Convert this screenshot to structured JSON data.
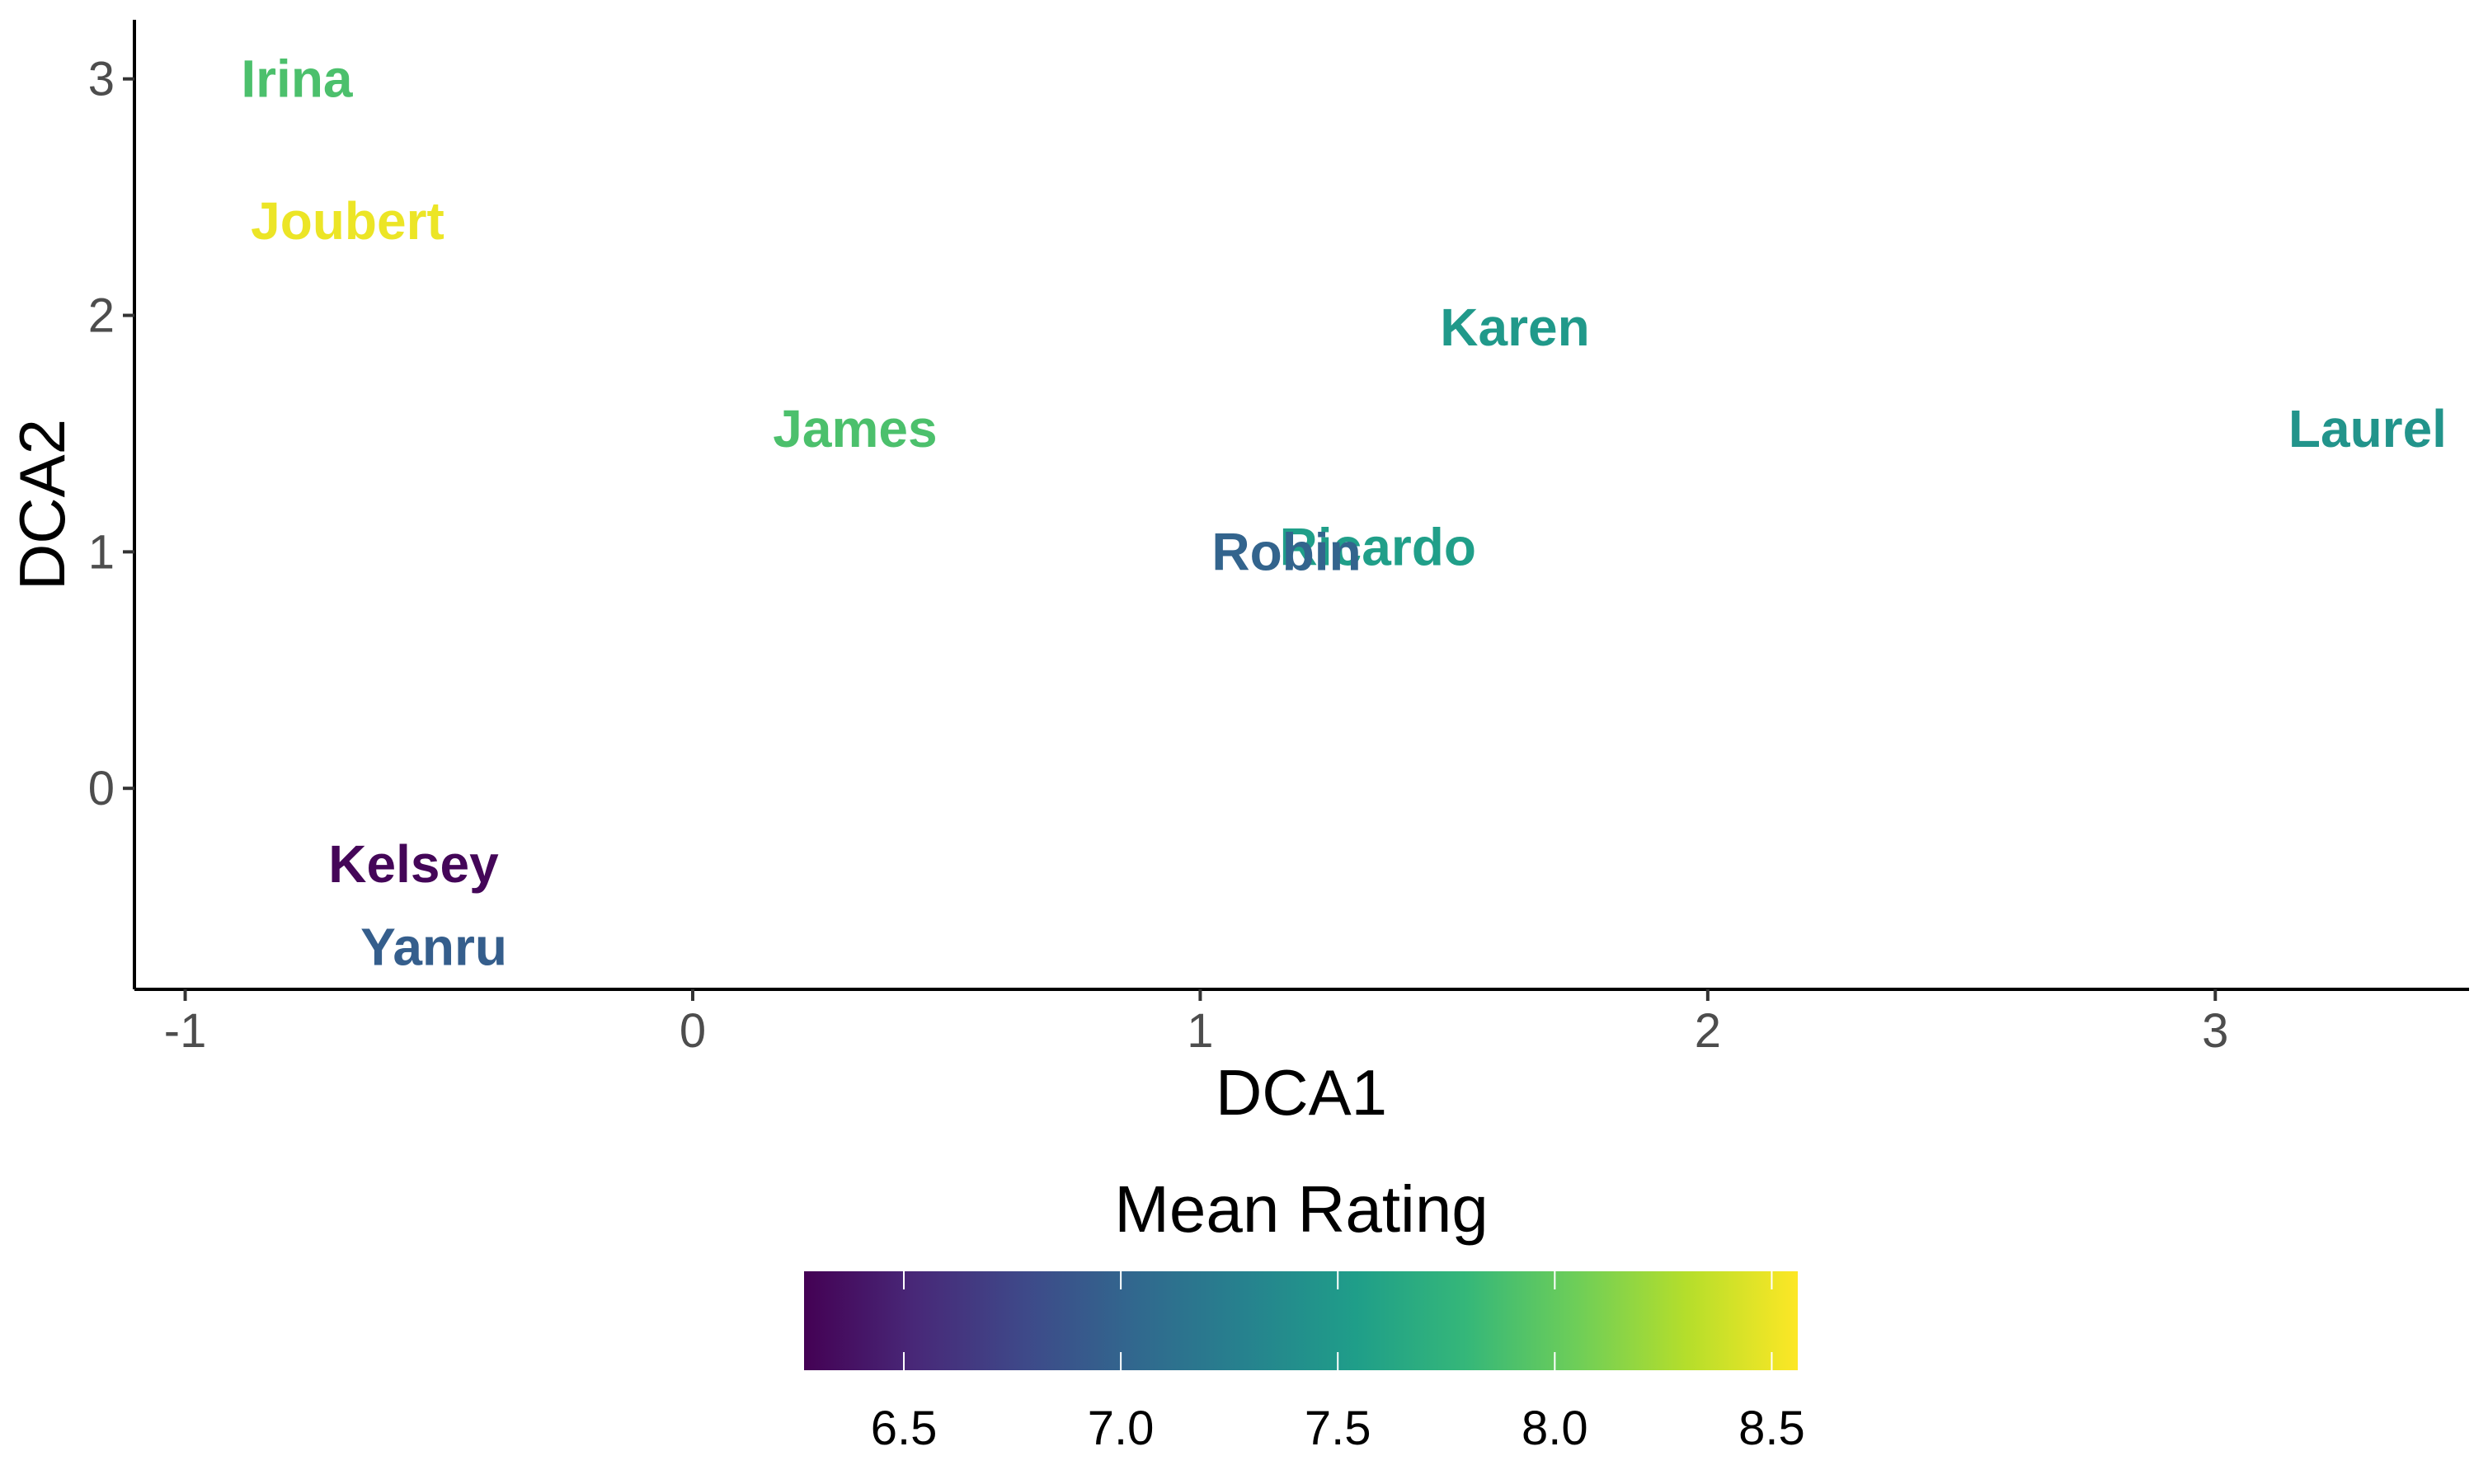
{
  "chart_data": {
    "type": "scatter",
    "xlabel": "DCA1",
    "ylabel": "DCA2",
    "xlim": [
      -1.1,
      3.5
    ],
    "ylim": [
      -0.85,
      3.25
    ],
    "x_ticks": [
      -1,
      0,
      1,
      2,
      3
    ],
    "y_ticks": [
      0,
      1,
      2,
      3
    ],
    "x_tick_labels": [
      "-1",
      "0",
      "1",
      "2",
      "3"
    ],
    "y_tick_labels": [
      "0",
      "1",
      "2",
      "3"
    ],
    "grid": false,
    "points": [
      {
        "label": "Irina",
        "x": -0.78,
        "y": 3.0,
        "rating": 7.9
      },
      {
        "label": "Joubert",
        "x": -0.68,
        "y": 2.4,
        "rating": 8.5
      },
      {
        "label": "Karen",
        "x": 1.62,
        "y": 1.95,
        "rating": 7.5
      },
      {
        "label": "James",
        "x": 0.32,
        "y": 1.52,
        "rating": 7.9
      },
      {
        "label": "Laurel",
        "x": 3.3,
        "y": 1.52,
        "rating": 7.45
      },
      {
        "label": "Ricardo",
        "x": 1.35,
        "y": 1.02,
        "rating": 7.55
      },
      {
        "label": "Robin",
        "x": 1.17,
        "y": 1.0,
        "rating": 7.0
      },
      {
        "label": "Kelsey",
        "x": -0.55,
        "y": -0.32,
        "rating": 6.3
      },
      {
        "label": "Yanru",
        "x": -0.51,
        "y": -0.67,
        "rating": 6.95
      }
    ],
    "legend": {
      "title": "Mean Rating",
      "placement": "bottom",
      "min": 6.27,
      "max": 8.56,
      "ticks": [
        6.5,
        7.0,
        7.5,
        8.0,
        8.5
      ],
      "tick_labels": [
        "6.5",
        "7.0",
        "7.5",
        "8.0",
        "8.5"
      ],
      "colors": [
        "#440154",
        "#482878",
        "#3e4989",
        "#31688e",
        "#26828e",
        "#1f9e89",
        "#35b779",
        "#6ece58",
        "#b5de2b",
        "#fde725"
      ]
    }
  }
}
